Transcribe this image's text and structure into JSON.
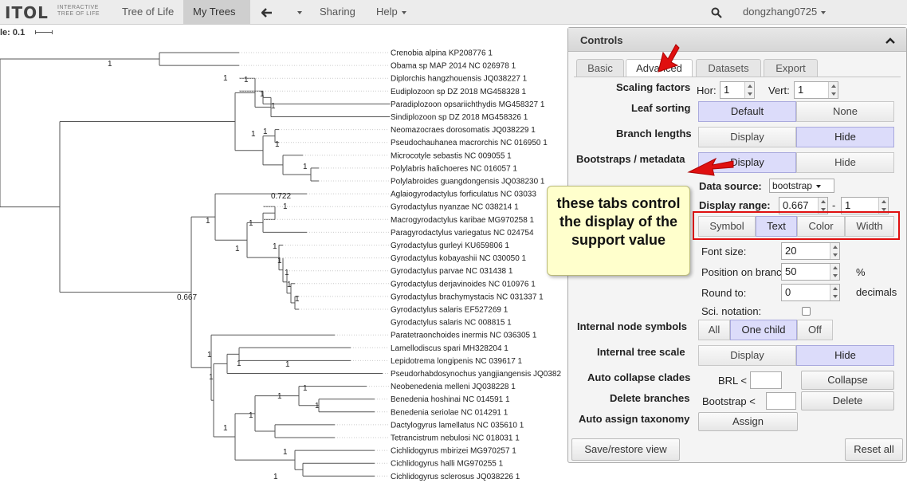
{
  "navbar": {
    "logo_main": "ITOL",
    "logo_sub": "INTERACTIVE TREE OF LIFE",
    "tree_of_life": "Tree of Life",
    "my_trees": "My Trees",
    "back_icon": "left-arrow-icon",
    "sharing": "Sharing",
    "help": "Help",
    "user": "dongzhang0725"
  },
  "tree": {
    "scale_label": "le: 0.1",
    "leaves": [
      "Crenobia alpina KP208776 1",
      "Obama sp MAP 2014 NC 026978 1",
      "Diplorchis hangzhouensis JQ038227 1",
      "Eudiplozoon sp DZ 2018 MG458328 1",
      "Paradiplozoon opsariichthydis MG458327 1",
      "Sindiplozoon sp DZ 2018 MG458326 1",
      "Neomazocraes dorosomatis JQ038229 1",
      "Pseudochauhanea macrorchis NC 016950 1",
      "Microcotyle sebastis NC 009055 1",
      "Polylabris halichoeres NC 016057 1",
      "Polylabroides guangdongensis JQ038230 1",
      "Aglaiogyrodactylus forficulatus NC 03033",
      "Gyrodactylus nyanzae NC 038214 1",
      "Macrogyrodactylus karibae MG970258 1",
      "Paragyrodactylus variegatus NC 024754",
      "Gyrodactylus gurleyi KU659806 1",
      "Gyrodactylus kobayashii NC 030050 1",
      "Gyrodactylus parvae NC 031438 1",
      "Gyrodactylus derjavinoides NC 010976 1",
      "Gyrodactylus brachymystacis NC 031337 1",
      "Gyrodactylus salaris EF527269 1",
      "Gyrodactylus salaris NC 008815 1",
      "Paratetraonchoides inermis NC 036305 1",
      "Lamellodiscus spari MH328204 1",
      "Lepidotrema longipenis NC 039617 1",
      "Pseudorhabdosynochus yangjiangensis JQ0382",
      "Neobenedenia melleni JQ038228 1",
      "Benedenia hoshinai NC 014591 1",
      "Benedenia seriolae NC 014291 1",
      "Dactylogyrus lamellatus NC 035610 1",
      "Tetrancistrum nebulosi NC 018031 1",
      "Cichlidogyrus mbirizei MG970257 1",
      "Cichlidogyrus halli MG970255 1",
      "Cichlidogyrus sclerosus JQ038226 1"
    ],
    "supports": [
      "1",
      "1",
      "1",
      "1",
      "1",
      "1",
      "1",
      "1",
      "1",
      "1",
      "0.722",
      "1",
      "1",
      "1",
      "1",
      "1",
      "1",
      "1",
      "1",
      "1",
      "1",
      "1",
      "1",
      "1",
      "1",
      "1",
      "1",
      "0.667"
    ]
  },
  "controls": {
    "title": "Controls",
    "tabs": [
      "Basic",
      "Advanced",
      "Datasets",
      "Export"
    ],
    "scaling_factors": "Scaling factors",
    "hor": "Hor:",
    "hor_value": "1",
    "vert": "Vert:",
    "vert_value": "1",
    "leaf_sorting": "Leaf sorting",
    "leaf_default": "Default",
    "leaf_none": "None",
    "branch_lengths": "Branch lengths",
    "display": "Display",
    "hide": "Hide",
    "bootstraps": "Bootstraps / metadata",
    "data_source": "Data source:",
    "data_source_value": "bootstrap",
    "display_range": "Display range:",
    "range_min": "0.667",
    "range_sep": "-",
    "range_max": "1",
    "sub_tabs": [
      "Symbol",
      "Text",
      "Color",
      "Width"
    ],
    "font_size": "Font size:",
    "font_size_value": "20",
    "position_on_branch": "Position on branch:",
    "position_value": "50",
    "percent": "%",
    "round_to": "Round to:",
    "round_value": "0",
    "decimals": "decimals",
    "sci_notation": "Sci. notation:",
    "internal_node_symbols": "Internal node symbols",
    "all": "All",
    "one_child": "One child",
    "off": "Off",
    "internal_tree_scale": "Internal tree scale",
    "auto_collapse": "Auto collapse clades",
    "brl": "BRL <",
    "collapse": "Collapse",
    "delete_branches": "Delete branches",
    "bootstrap_lt": "Bootstrap <",
    "delete": "Delete",
    "auto_assign": "Auto assign taxonomy",
    "assign": "Assign",
    "save_restore": "Save/restore view",
    "reset_all": "Reset all"
  },
  "annotation": {
    "callout": "these tabs control the display of the support value",
    "arrow_color": "#e01010"
  }
}
